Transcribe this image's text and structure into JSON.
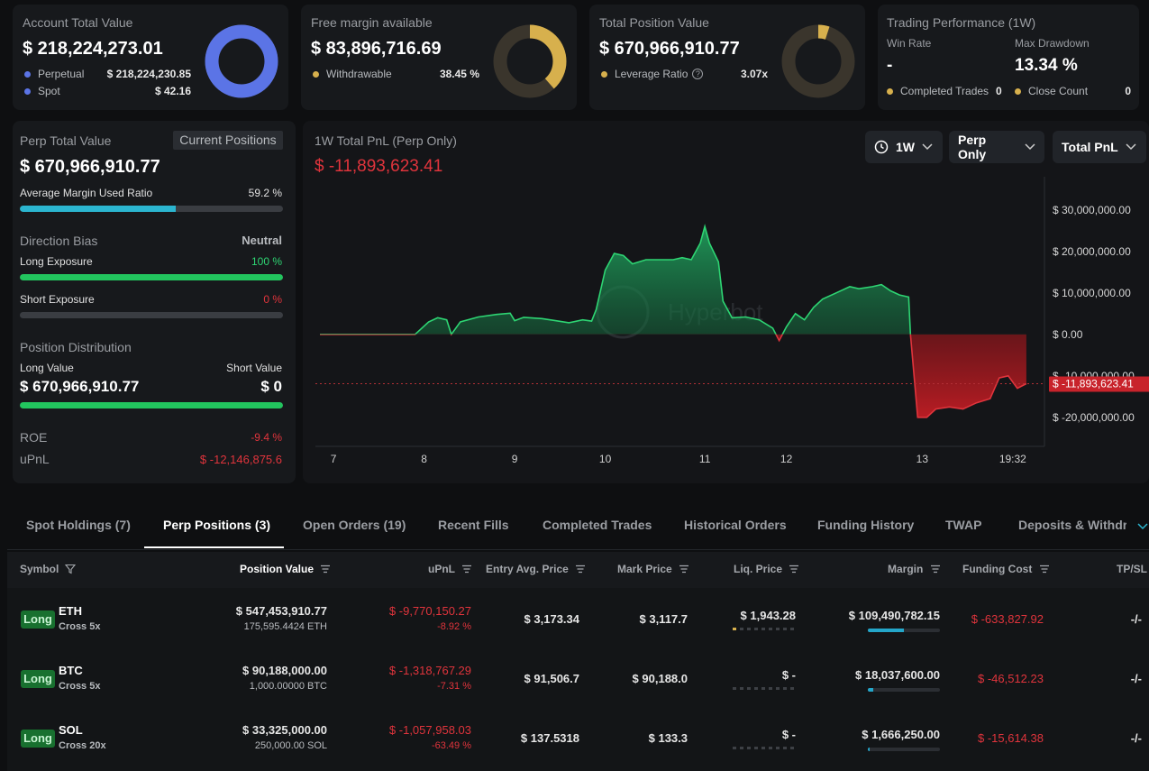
{
  "cards": {
    "account": {
      "title": "Account Total Value",
      "value": "$ 218,224,273.01",
      "rows": [
        {
          "label": "Perpetual",
          "value": "$ 218,224,230.85"
        },
        {
          "label": "Spot",
          "value": "$ 42.16"
        }
      ],
      "donut_fraction": 0.9999
    },
    "margin": {
      "title": "Free margin available",
      "value": "$ 83,896,716.69",
      "row_label": "Withdrawable",
      "row_value": "38.45 %",
      "donut_fraction": 0.3845
    },
    "position": {
      "title": "Total Position Value",
      "value": "$ 670,966,910.77",
      "row_label": "Leverage Ratio",
      "row_value": "3.07x",
      "donut_fraction": 0.05
    },
    "performance": {
      "title": "Trading Performance (1W)",
      "win_rate_label": "Win Rate",
      "win_rate_value": "-",
      "drawdown_label": "Max Drawdown",
      "drawdown_value": "13.34 %",
      "completed_label": "Completed Trades",
      "completed_value": "0",
      "close_label": "Close Count",
      "close_value": "0"
    }
  },
  "perp": {
    "title": "Perp Total Value",
    "button": "Current Positions",
    "value": "$ 670,966,910.77",
    "margin_ratio_label": "Average Margin Used Ratio",
    "margin_ratio_value": "59.2 %",
    "margin_ratio_fraction": 0.592,
    "bias_label": "Direction Bias",
    "bias_value": "Neutral",
    "long_label": "Long Exposure",
    "long_value": "100 %",
    "long_fraction": 1.0,
    "short_label": "Short Exposure",
    "short_value": "0 %",
    "short_fraction": 0.0,
    "dist_label": "Position Distribution",
    "long_value_label": "Long Value",
    "short_value_label": "Short Value",
    "long_value_amount": "$ 670,966,910.77",
    "short_value_amount": "$ 0",
    "dist_long_fraction": 1.0,
    "roe_label": "ROE",
    "roe_value": "-9.4 %",
    "upnl_label": "uPnL",
    "upnl_value": "$ -12,146,875.6"
  },
  "pnl": {
    "title": "1W Total PnL (Perp Only)",
    "value": "$ -11,893,623.41",
    "dropdowns": {
      "range": "1W",
      "scope": "Perp Only",
      "metric": "Total PnL"
    },
    "watermark": "Hyperbot",
    "current_tag": "$ -11,893,623.41"
  },
  "chart_data": {
    "type": "area",
    "title": "1W Total PnL (Perp Only)",
    "y_ticks": [
      30000000,
      20000000,
      10000000,
      0,
      -10000000,
      -20000000
    ],
    "y_tick_labels": [
      "$ 30,000,000.00",
      "$ 20,000,000.00",
      "$ 10,000,000.00",
      "$ 0.00",
      "$ -10,000,000.00",
      "$ -20,000,000.00"
    ],
    "ylim": [
      -27000000,
      38000000
    ],
    "x_tick_labels": [
      {
        "t": 0.2,
        "label": "7"
      },
      {
        "t": 1.2,
        "label": "8"
      },
      {
        "t": 2.2,
        "label": "9"
      },
      {
        "t": 3.2,
        "label": "10"
      },
      {
        "t": 4.3,
        "label": "11"
      },
      {
        "t": 5.2,
        "label": "12"
      },
      {
        "t": 6.7,
        "label": "13"
      },
      {
        "t": 7.7,
        "label": "19:32"
      }
    ],
    "xlim": [
      0,
      8.0
    ],
    "current_value": -11893623.41,
    "points": [
      [
        0.05,
        0
      ],
      [
        0.4,
        0
      ],
      [
        0.8,
        0
      ],
      [
        1.0,
        0
      ],
      [
        1.1,
        0
      ],
      [
        1.25,
        3000000
      ],
      [
        1.35,
        4000000
      ],
      [
        1.45,
        3500000
      ],
      [
        1.5,
        0
      ],
      [
        1.6,
        3000000
      ],
      [
        1.8,
        4200000
      ],
      [
        2.0,
        4800000
      ],
      [
        2.15,
        5100000
      ],
      [
        2.2,
        3300000
      ],
      [
        2.3,
        4100000
      ],
      [
        2.5,
        3800000
      ],
      [
        2.65,
        3300000
      ],
      [
        2.8,
        2800000
      ],
      [
        2.95,
        3500000
      ],
      [
        3.05,
        3200000
      ],
      [
        3.1,
        6000000
      ],
      [
        3.2,
        15500000
      ],
      [
        3.3,
        19500000
      ],
      [
        3.4,
        19000000
      ],
      [
        3.5,
        17000000
      ],
      [
        3.65,
        18000000
      ],
      [
        3.8,
        18000000
      ],
      [
        3.95,
        18000000
      ],
      [
        4.05,
        18500000
      ],
      [
        4.15,
        18000000
      ],
      [
        4.25,
        22000000
      ],
      [
        4.3,
        26000000
      ],
      [
        4.35,
        22000000
      ],
      [
        4.45,
        17500000
      ],
      [
        4.5,
        8000000
      ],
      [
        4.6,
        4000000
      ],
      [
        4.75,
        4200000
      ],
      [
        4.9,
        3500000
      ],
      [
        5.05,
        1500000
      ],
      [
        5.12,
        -1500000
      ],
      [
        5.2,
        1800000
      ],
      [
        5.3,
        5000000
      ],
      [
        5.4,
        3500000
      ],
      [
        5.5,
        6500000
      ],
      [
        5.6,
        8500000
      ],
      [
        5.75,
        10000000
      ],
      [
        5.9,
        11500000
      ],
      [
        6.0,
        11000000
      ],
      [
        6.15,
        11500000
      ],
      [
        6.25,
        12000000
      ],
      [
        6.35,
        10500000
      ],
      [
        6.45,
        9500000
      ],
      [
        6.55,
        9000000
      ],
      [
        6.57,
        0
      ],
      [
        6.65,
        -20000000
      ],
      [
        6.75,
        -20000000
      ],
      [
        6.85,
        -18000000
      ],
      [
        7.0,
        -17500000
      ],
      [
        7.15,
        -18000000
      ],
      [
        7.3,
        -16500000
      ],
      [
        7.45,
        -15500000
      ],
      [
        7.55,
        -10500000
      ],
      [
        7.65,
        -10000000
      ],
      [
        7.75,
        -13000000
      ],
      [
        7.85,
        -11893623.41
      ]
    ]
  },
  "tabs": [
    {
      "label": "Spot Holdings (7)"
    },
    {
      "label": "Perp Positions (3)"
    },
    {
      "label": "Open Orders (19)"
    },
    {
      "label": "Recent Fills"
    },
    {
      "label": "Completed Trades"
    },
    {
      "label": "Historical Orders"
    },
    {
      "label": "Funding History"
    },
    {
      "label": "TWAP"
    },
    {
      "label": "Deposits & Withdra"
    }
  ],
  "table": {
    "headers": {
      "symbol": "Symbol",
      "position_value": "Position Value",
      "upnl": "uPnL",
      "entry": "Entry Avg. Price",
      "mark": "Mark Price",
      "liq": "Liq. Price",
      "margin": "Margin",
      "funding": "Funding Cost",
      "tpsl": "TP/SL"
    },
    "rows": [
      {
        "side": "Long",
        "symbol": "ETH",
        "mode": "Cross 5x",
        "value": "$ 547,453,910.77",
        "size": "175,595.4424 ETH",
        "upnl": "$ -9,770,150.27",
        "upnl_pct": "-8.92 %",
        "entry": "$ 3,173.34",
        "mark": "$ 3,117.7",
        "liq": "$ 1,943.28",
        "liq_fraction": 0.15,
        "margin": "$ 109,490,782.15",
        "margin_fraction": 0.5,
        "funding": "$ -633,827.92",
        "tpsl": "-/-"
      },
      {
        "side": "Long",
        "symbol": "BTC",
        "mode": "Cross 5x",
        "value": "$ 90,188,000.00",
        "size": "1,000.00000 BTC",
        "upnl": "$ -1,318,767.29",
        "upnl_pct": "-7.31 %",
        "entry": "$ 91,506.7",
        "mark": "$ 90,188.0",
        "liq": "$ -",
        "liq_fraction": 0,
        "margin": "$ 18,037,600.00",
        "margin_fraction": 0.08,
        "funding": "$ -46,512.23",
        "tpsl": "-/-"
      },
      {
        "side": "Long",
        "symbol": "SOL",
        "mode": "Cross 20x",
        "value": "$ 33,325,000.00",
        "size": "250,000.00 SOL",
        "upnl": "$ -1,057,958.03",
        "upnl_pct": "-63.49 %",
        "entry": "$ 137.5318",
        "mark": "$ 133.3",
        "liq": "$ -",
        "liq_fraction": 0,
        "margin": "$ 1,666,250.00",
        "margin_fraction": 0.02,
        "funding": "$ -15,614.38",
        "tpsl": "-/-"
      }
    ]
  },
  "colors": {
    "accent_blue": "#5b74e6",
    "gold": "#d7b04d",
    "green": "#2ed573",
    "red": "#e0343c",
    "cyan": "#2bb5cf"
  }
}
